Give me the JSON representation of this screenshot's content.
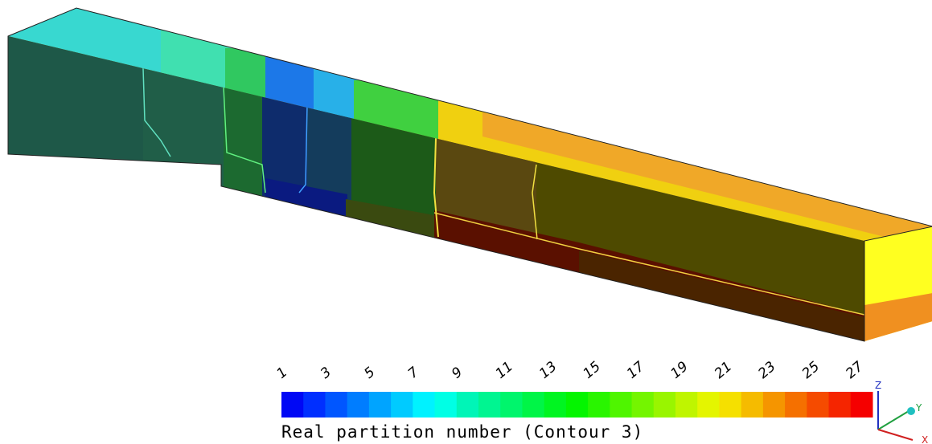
{
  "colorbar": {
    "title": "Real partition number (Contour 3)",
    "range": [
      1,
      28
    ],
    "ticks": [
      1,
      3,
      5,
      7,
      9,
      11,
      13,
      15,
      17,
      19,
      21,
      23,
      25,
      27
    ]
  },
  "axes": {
    "z": "Z",
    "y": "Y",
    "x": "X"
  }
}
